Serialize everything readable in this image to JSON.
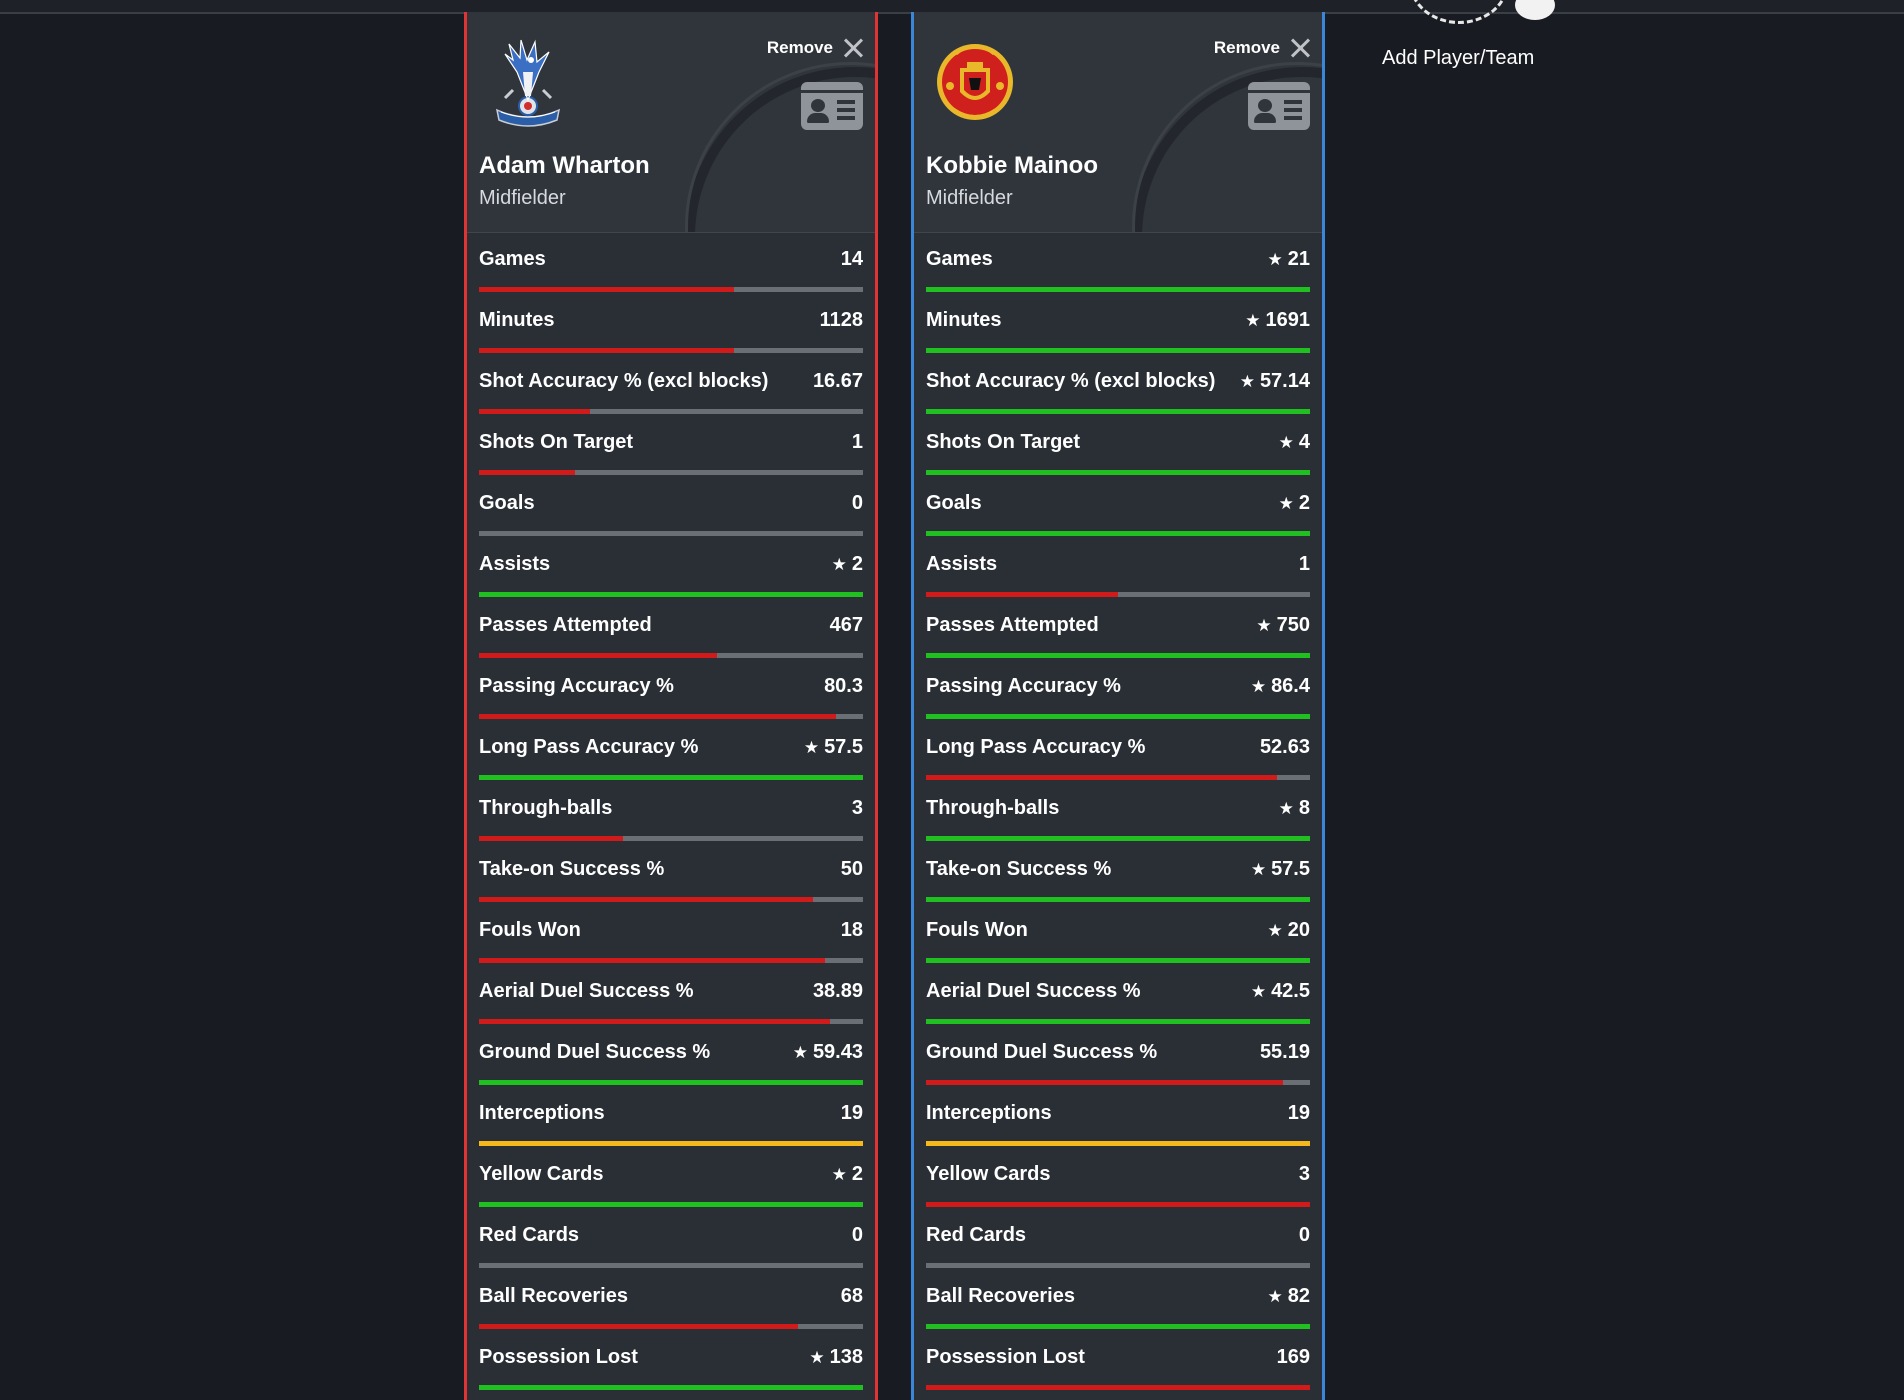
{
  "colors": {
    "red": "#d11a1a",
    "green": "#20c020",
    "yellow": "#f5b91c",
    "gray": "#6a6f75",
    "left_border": "#e03434",
    "right_border": "#3a86d8"
  },
  "add_player": {
    "label": "Add Player/Team"
  },
  "players": [
    {
      "name": "Adam Wharton",
      "position": "Midfielder",
      "remove_label": "Remove",
      "club_crest": "crystal-palace-crest",
      "stats": [
        {
          "label": "Games",
          "value": "14",
          "star": false,
          "fill": 0.665,
          "color": "red"
        },
        {
          "label": "Minutes",
          "value": "1128",
          "star": false,
          "fill": 0.665,
          "color": "red"
        },
        {
          "label": "Shot Accuracy % (excl blocks)",
          "value": "16.67",
          "star": false,
          "fill": 0.29,
          "color": "red"
        },
        {
          "label": "Shots On Target",
          "value": "1",
          "star": false,
          "fill": 0.25,
          "color": "red"
        },
        {
          "label": "Goals",
          "value": "0",
          "star": false,
          "fill": 0,
          "color": "gray"
        },
        {
          "label": "Assists",
          "value": "2",
          "star": true,
          "fill": 1,
          "color": "green"
        },
        {
          "label": "Passes Attempted",
          "value": "467",
          "star": false,
          "fill": 0.62,
          "color": "red"
        },
        {
          "label": "Passing Accuracy %",
          "value": "80.3",
          "star": false,
          "fill": 0.93,
          "color": "red"
        },
        {
          "label": "Long Pass Accuracy %",
          "value": "57.5",
          "star": true,
          "fill": 1,
          "color": "green"
        },
        {
          "label": "Through-balls",
          "value": "3",
          "star": false,
          "fill": 0.375,
          "color": "red"
        },
        {
          "label": "Take-on Success %",
          "value": "50",
          "star": false,
          "fill": 0.87,
          "color": "red"
        },
        {
          "label": "Fouls Won",
          "value": "18",
          "star": false,
          "fill": 0.9,
          "color": "red"
        },
        {
          "label": "Aerial Duel Success %",
          "value": "38.89",
          "star": false,
          "fill": 0.915,
          "color": "red"
        },
        {
          "label": "Ground Duel Success %",
          "value": "59.43",
          "star": true,
          "fill": 1,
          "color": "green"
        },
        {
          "label": "Interceptions",
          "value": "19",
          "star": false,
          "fill": 1,
          "color": "yellow"
        },
        {
          "label": "Yellow Cards",
          "value": "2",
          "star": true,
          "fill": 1,
          "color": "green"
        },
        {
          "label": "Red Cards",
          "value": "0",
          "star": false,
          "fill": 0,
          "color": "gray"
        },
        {
          "label": "Ball Recoveries",
          "value": "68",
          "star": false,
          "fill": 0.83,
          "color": "red"
        },
        {
          "label": "Possession Lost",
          "value": "138",
          "star": true,
          "fill": 1,
          "color": "green"
        }
      ]
    },
    {
      "name": "Kobbie Mainoo",
      "position": "Midfielder",
      "remove_label": "Remove",
      "club_crest": "manchester-united-crest",
      "stats": [
        {
          "label": "Games",
          "value": "21",
          "star": true,
          "fill": 1,
          "color": "green"
        },
        {
          "label": "Minutes",
          "value": "1691",
          "star": true,
          "fill": 1,
          "color": "green"
        },
        {
          "label": "Shot Accuracy % (excl blocks)",
          "value": "57.14",
          "star": true,
          "fill": 1,
          "color": "green"
        },
        {
          "label": "Shots On Target",
          "value": "4",
          "star": true,
          "fill": 1,
          "color": "green"
        },
        {
          "label": "Goals",
          "value": "2",
          "star": true,
          "fill": 1,
          "color": "green"
        },
        {
          "label": "Assists",
          "value": "1",
          "star": false,
          "fill": 0.5,
          "color": "red"
        },
        {
          "label": "Passes Attempted",
          "value": "750",
          "star": true,
          "fill": 1,
          "color": "green"
        },
        {
          "label": "Passing Accuracy %",
          "value": "86.4",
          "star": true,
          "fill": 1,
          "color": "green"
        },
        {
          "label": "Long Pass Accuracy %",
          "value": "52.63",
          "star": false,
          "fill": 0.915,
          "color": "red"
        },
        {
          "label": "Through-balls",
          "value": "8",
          "star": true,
          "fill": 1,
          "color": "green"
        },
        {
          "label": "Take-on Success %",
          "value": "57.5",
          "star": true,
          "fill": 1,
          "color": "green"
        },
        {
          "label": "Fouls Won",
          "value": "20",
          "star": true,
          "fill": 1,
          "color": "green"
        },
        {
          "label": "Aerial Duel Success %",
          "value": "42.5",
          "star": true,
          "fill": 1,
          "color": "green"
        },
        {
          "label": "Ground Duel Success %",
          "value": "55.19",
          "star": false,
          "fill": 0.93,
          "color": "red"
        },
        {
          "label": "Interceptions",
          "value": "19",
          "star": false,
          "fill": 1,
          "color": "yellow"
        },
        {
          "label": "Yellow Cards",
          "value": "3",
          "star": false,
          "fill": 1,
          "color": "red"
        },
        {
          "label": "Red Cards",
          "value": "0",
          "star": false,
          "fill": 0,
          "color": "gray"
        },
        {
          "label": "Ball Recoveries",
          "value": "82",
          "star": true,
          "fill": 1,
          "color": "green"
        },
        {
          "label": "Possession Lost",
          "value": "169",
          "star": false,
          "fill": 1,
          "color": "red"
        }
      ]
    }
  ]
}
